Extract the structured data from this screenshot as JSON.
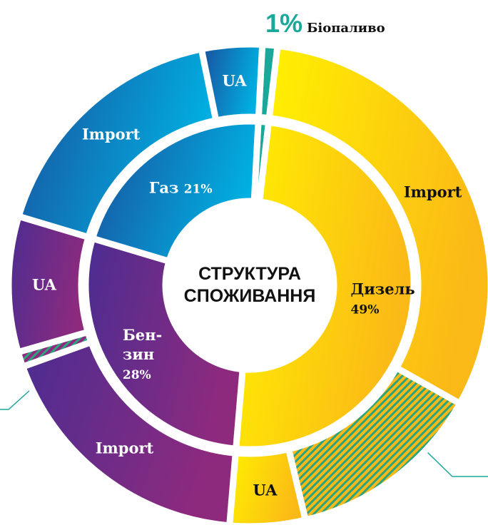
{
  "chart_data": {
    "type": "sunburst",
    "title": "СТРУКТУРА СПОЖИВАННЯ",
    "categories": [
      "Біопаливо",
      "Дизель",
      "Бен-зин",
      "Газ"
    ],
    "values": [
      1,
      49,
      28,
      21
    ],
    "value_labels": [
      "1%",
      "49%",
      "28%",
      "21%"
    ],
    "colors": [
      [
        "#1aa89a",
        "#1aa89a"
      ],
      [
        "#fff100",
        "#fbb917"
      ],
      [
        "#4b2d91",
        "#8e2a7e"
      ],
      [
        "#1a4f9c",
        "#00b0e2"
      ]
    ],
    "label_colors": [
      "#111111",
      "#111111",
      "#ffffff",
      "#ffffff"
    ],
    "hatch_color": "#2aa37f",
    "outer": [
      {
        "parent": 0,
        "label": null,
        "value": 1,
        "hatched": false
      },
      {
        "parent": 1,
        "label": "Import",
        "value": 31,
        "hatched": false
      },
      {
        "parent": 1,
        "label": null,
        "value": 13,
        "hatched": true
      },
      {
        "parent": 1,
        "label": "UA",
        "value": 5,
        "hatched": false
      },
      {
        "parent": 2,
        "label": "Import",
        "value": 18,
        "hatched": false
      },
      {
        "parent": 2,
        "label": null,
        "value": 1,
        "hatched": true
      },
      {
        "parent": 2,
        "label": "UA",
        "value": 9,
        "hatched": false
      },
      {
        "parent": 3,
        "label": "Import",
        "value": 17,
        "hatched": false
      },
      {
        "parent": 3,
        "label": "UA",
        "value": 4,
        "hatched": false
      }
    ]
  }
}
